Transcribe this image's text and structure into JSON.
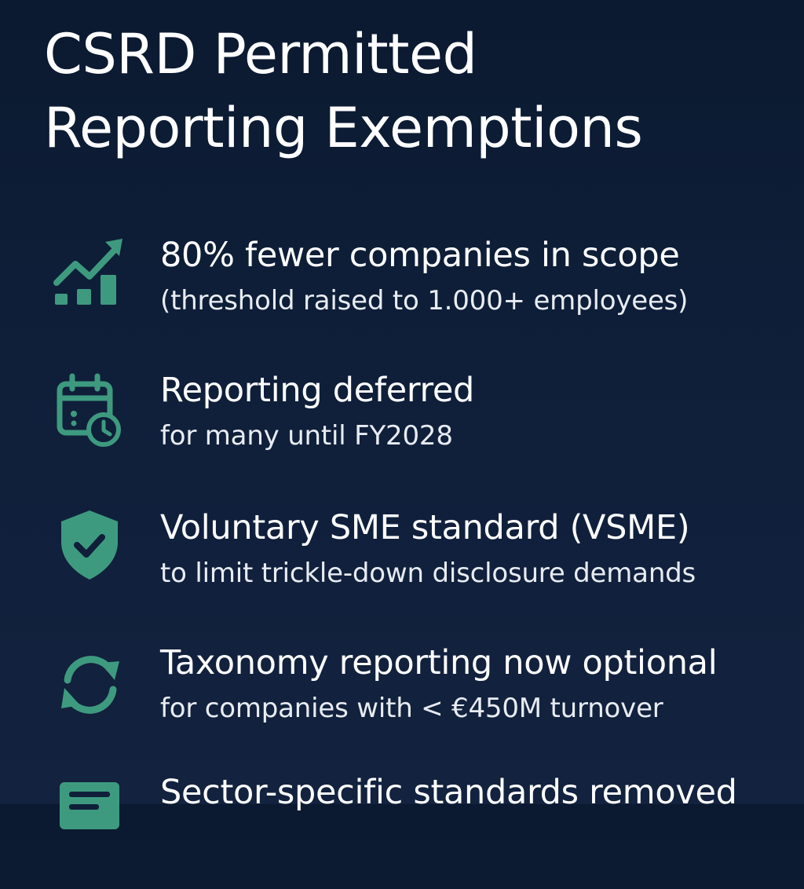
{
  "title": {
    "line1": "CSRD Permitted",
    "line2": "Reporting Exemptions"
  },
  "accent_color": "#3e9a7f",
  "items": [
    {
      "icon": "growth-chart-icon",
      "headline": "80% fewer companies in scope",
      "sub": "(threshold raised to 1.000+ employees)"
    },
    {
      "icon": "calendar-clock-icon",
      "headline": "Reporting deferred",
      "sub": "for many until FY2028"
    },
    {
      "icon": "shield-check-icon",
      "headline": "Voluntary SME standard (VSME)",
      "sub": "to limit trickle-down disclosure demands"
    },
    {
      "icon": "refresh-icon",
      "headline": "Taxonomy reporting now optional",
      "sub": "for companies with < €450M turnover"
    },
    {
      "icon": "document-lines-icon",
      "headline": "Sector-specific standards removed",
      "sub": ""
    }
  ]
}
